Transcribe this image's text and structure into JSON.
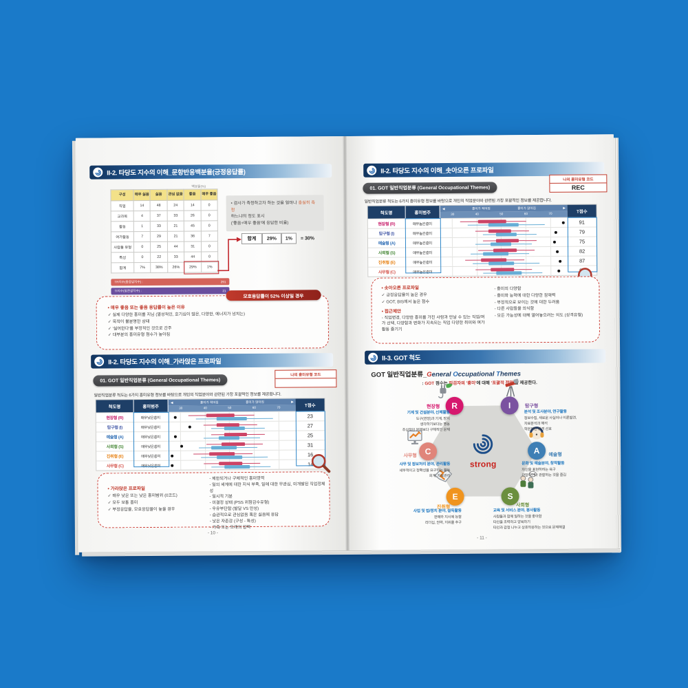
{
  "profile_header": {
    "scale": "척도명",
    "range": "흥미범주",
    "t": "T점수",
    "less": "흥미가 적어짐",
    "more": "흥미가 많아짐",
    "arrow_left": "◀",
    "arrow_right": "▶",
    "ticks": [
      "30",
      "40",
      "50",
      "60",
      "70"
    ]
  },
  "left_page": {
    "page_number": "- 10 -",
    "s1": {
      "title": "II-2. 타당도 지수의 이해_문항반응백분율(긍정응답률)",
      "unit": "백분율(%)",
      "table": {
        "headers": [
          "구성",
          "매우 싫음",
          "싫음",
          "관심 없음",
          "좋음",
          "매우 좋음"
        ],
        "rows": [
          {
            "label": "직업",
            "c": [
              "14",
              "48",
              "24",
              "14",
              "0"
            ]
          },
          {
            "label": "교과목",
            "c": [
              "4",
              "37",
              "33",
              "26",
              "0"
            ]
          },
          {
            "label": "활동",
            "c": [
              "1",
              "33",
              "21",
              "45",
              "0"
            ]
          },
          {
            "label": "여가활동",
            "c": [
              "7",
              "29",
              "21",
              "36",
              "7"
            ]
          },
          {
            "label": "사람들 유형",
            "c": [
              "0",
              "25",
              "44",
              "31",
              "0"
            ]
          },
          {
            "label": "특성",
            "c": [
              "0",
              "22",
              "33",
              "44",
              "0"
            ]
          },
          {
            "label": "합계",
            "c": [
              "7%",
              "38%",
              "26%",
              "29%",
              "1%"
            ]
          }
        ]
      },
      "tr_bar": {
        "label": "TR지수(총응답지수) :",
        "value": "291",
        "color": "#d4635a"
      },
      "ti_bar": {
        "label": "TI지수(일관성지수) :",
        "value": "21",
        "color": "#6a4e9e"
      },
      "note": {
        "l1": "• 검사가 측정하고자 하는 것을 얼마나 ",
        "hl": "충실히 측정",
        "l2": "하느냐의 정도 표시",
        "l3": "('좋음+매우 좋음'에 응답한 비율)"
      },
      "sum": {
        "label": "합계",
        "v1": "29%",
        "v2": "1%",
        "eq": "= 30%"
      },
      "box": {
        "badge": "모호응답률이 52% 이상일 경우",
        "title": "• 매우 좋음 또는 좋음 응답률이 높은 이유",
        "items": [
          "✓ 실제 다양한 흥미를 지님 (열성적인, 호기심이 많은, 다양한, 에너지가 넘치는)",
          "✓ 목적이 불분명한 상태",
          "✓ '싫어한다'를 부정적인 것으로 간주",
          "✓ 대부분의 흥미유형 점수가 높아짐"
        ]
      }
    },
    "s2": {
      "title": "II-2. 타당도 지수의 이해_가라앉은 프로파일",
      "pill": "01. GOT 일반직업분류 (General Occupational Themes)",
      "code_label": "나의 흥미유형 코드",
      "code_value": "",
      "intro": "일반직업분류 척도는 6가지 흥미유형 정보를 바탕으로 개인의 직업분야와 관련된 가장 포괄적인 정보를 제공합니다.",
      "rows": [
        {
          "type": "현장형 (R)",
          "color": "#c9256f",
          "range": "매우낮은흥미",
          "t": "23",
          "dot": 6,
          "bars": {
            "r": [
              16,
              30,
              52,
              68
            ],
            "b": [
              22,
              38,
              62,
              82
            ]
          }
        },
        {
          "type": "탐구형 (I)",
          "color": "#4f63ac",
          "range": "매우낮은흥미",
          "t": "27",
          "dot": 17,
          "bars": {
            "r": [
              28,
              38,
              56,
              70
            ],
            "b": [
              34,
              44,
              60,
              76
            ]
          }
        },
        {
          "type": "예술형 (A)",
          "color": "#2f6eb5",
          "range": "매우낮은흥미",
          "t": "25",
          "dot": 6,
          "bars": {
            "r": [
              34,
              44,
              62,
              76
            ],
            "b": [
              28,
              40,
              56,
              72
            ]
          }
        },
        {
          "type": "사회형 (S)",
          "color": "#4e8c3f",
          "range": "매우낮은흥미",
          "t": "31",
          "dot": 11,
          "bars": {
            "r": [
              30,
              42,
              60,
              74
            ],
            "b": [
              24,
              34,
              54,
              70
            ]
          }
        },
        {
          "type": "진취형 (E)",
          "color": "#e8871e",
          "range": "매우낮은흥미",
          "t": "16",
          "dot": 3,
          "bars": {
            "r": [
              20,
              32,
              52,
              66
            ],
            "b": [
              26,
              38,
              58,
              78
            ]
          }
        },
        {
          "type": "사무형 (C)",
          "color": "#d4574e",
          "range": "매우낮은흥미",
          "t": "14",
          "dot": 3,
          "bars": {
            "r": [
              28,
              40,
              58,
              72
            ],
            "b": [
              34,
              44,
              64,
              80
            ]
          }
        }
      ],
      "box": {
        "title": "• 가라앉은 프로파일",
        "items": [
          "✓ 매우 낮은 또는 낮은 흥미범위 (0코드)",
          "✓ 모두 보통 흥미",
          "✓ 부정응답율, 모호응답율이 높을 경우"
        ],
        "right": [
          "- 제한되거나 구체적인 흥미영역",
          "- 일의 세계에 대한 지식 부족, 일에 대한 무관심, 미개발된 직업정체성",
          "- 일시적 기분",
          "- 미결정 상태 (PSS 위험감수유형)",
          "- 우유부단함 (발달 VS 만성)",
          "- 습관적으로 관심없음 혹은 싫음에 응답",
          "- 낮은 자존감 (구성 - 특성)",
          "- 가족 또는 또래의 압력"
        ]
      }
    }
  },
  "right_page": {
    "page_number": "- 11 -",
    "s1": {
      "title": "II-2. 타당도 지수의 이해_솟아오른 프로파일",
      "pill": "01. GOT 일반직업분류 (General Occupational Themes)",
      "code_label": "나의 흥미유형 코드",
      "code_value": "REC",
      "intro": "일반직업분류 척도는 6가지 흥미유형 정보를 바탕으로 개인의 직업분야와 관련된 가장 포괄적인 정보를 제공합니다.",
      "rows": [
        {
          "type": "현장형 (R)",
          "color": "#c9256f",
          "range": "매우높은흥미",
          "t": "91",
          "dot": 97,
          "bars": {
            "r": [
              16,
              30,
              52,
              68
            ],
            "b": [
              22,
              38,
              62,
              82
            ]
          }
        },
        {
          "type": "탐구형 (I)",
          "color": "#4f63ac",
          "range": "매우높은흥미",
          "t": "79",
          "dot": 91,
          "bars": {
            "r": [
              28,
              38,
              56,
              70
            ],
            "b": [
              34,
              44,
              60,
              76
            ]
          }
        },
        {
          "type": "예술형 (A)",
          "color": "#2f6eb5",
          "range": "매우높은흥미",
          "t": "75",
          "dot": 90,
          "bars": {
            "r": [
              34,
              44,
              62,
              76
            ],
            "b": [
              28,
              40,
              56,
              72
            ]
          }
        },
        {
          "type": "사회형 (S)",
          "color": "#4e8c3f",
          "range": "매우높은흥미",
          "t": "82",
          "dot": 92,
          "bars": {
            "r": [
              30,
              42,
              60,
              74
            ],
            "b": [
              24,
              34,
              54,
              70
            ]
          }
        },
        {
          "type": "진취형 (E)",
          "color": "#e8871e",
          "range": "매우높은흥미",
          "t": "87",
          "dot": 94,
          "bars": {
            "r": [
              20,
              32,
              52,
              66
            ],
            "b": [
              26,
              38,
              58,
              78
            ]
          }
        },
        {
          "type": "사무형 (C)",
          "color": "#d4574e",
          "range": "매우높은흥미",
          "t": "85",
          "dot": 93,
          "bars": {
            "r": [
              28,
              40,
              58,
              72
            ],
            "b": [
              34,
              44,
              64,
              80
            ]
          }
        }
      ],
      "box": {
        "title1": "• 솟아오른 프로파일",
        "items1": [
          "✓ 긍정응답율이 높은 경우",
          "✓ GOT, BIS에서 높은 점수"
        ],
        "title2": "• 접근제안",
        "item2": "- 직업변경, 다양한 흥미를 가진 사람과 만날 수 있는 직업/여가 선택, 다양함과 변화가 지속되는 직업 다양한 취미와 여가활동 즐기기",
        "right": [
          "- 흥미의 다양함",
          "- 흥미와 능력에 대한 다양한 잠재력",
          "- 부정적으로 보이는 것에 대한 두려움",
          "- 다른 사람들을 의식함",
          "- 모든 가능성에 대해 열어놓으려는 의도 (성격유형)"
        ]
      }
    },
    "s2": {
      "title": "II-3. GOT 척도",
      "t_ko": "GOT 일반직업분류_",
      "t_g": "G",
      "t_g2": "eneral ",
      "t_o": "O",
      "t_o2": "ccupational ",
      "t_t": "T",
      "t_t2": "hemes",
      "sub1": ": ",
      "sub2": "GOT",
      "sub3": " 점수는 ",
      "sub4": "피검자의 '흥미'",
      "sub5": "에 대해 ",
      "sub6": "'포괄적 전망'",
      "sub7": "을 제공한다.",
      "center_logo": "strong",
      "types": [
        {
          "code": "R",
          "name": "현장형",
          "color": "#d6186e",
          "cat": "기계 및 건설분야, 신체활동",
          "lines": [
            "도구(연장)과 기계, 장치",
            "생각하기보다는 행동",
            "추상적인 문제보다 구체적인 문제"
          ]
        },
        {
          "code": "I",
          "name": "탐구형",
          "color": "#7b52a0",
          "cat": "분석 및 조사분야, 연구활동",
          "lines": [
            "정보수집, 새로운 사실이나 이론발견,",
            "자료분석과 해석",
            "학문적인 환경 선호"
          ]
        },
        {
          "code": "C",
          "name": "사무형",
          "color": "#e0857a",
          "cat": "사무 및 정보처리 분야, 관리활동",
          "lines": [
            "세부적이고 정확성을 요구하는 활동",
            "회계, 자료관리"
          ]
        },
        {
          "code": "A",
          "name": "예술형",
          "color": "#3f7fb5",
          "cat": "문화 및 예술분야, 창작활동",
          "lines": [
            "자신을 표현하려는 욕구",
            "관망하거나 관찰하는 것을 즐김"
          ]
        },
        {
          "code": "E",
          "name": "진취형",
          "color": "#f0941e",
          "cat": "사업 및 법/정치 분야, 설득활동",
          "lines": [
            "판매와 지시에 능함",
            "리더십, 권력, 지위를 추구"
          ]
        },
        {
          "code": "S",
          "name": "사회형",
          "color": "#6b8f3e",
          "cat": "교육 및 서비스 분야, 봉사활동",
          "lines": [
            "사람들과 함께 일하는 것을 좋아함",
            "타인을 조력하고 양육하기",
            "타인과 감정 나누고 상호작용하는 것으로 문제해결"
          ]
        }
      ]
    }
  }
}
